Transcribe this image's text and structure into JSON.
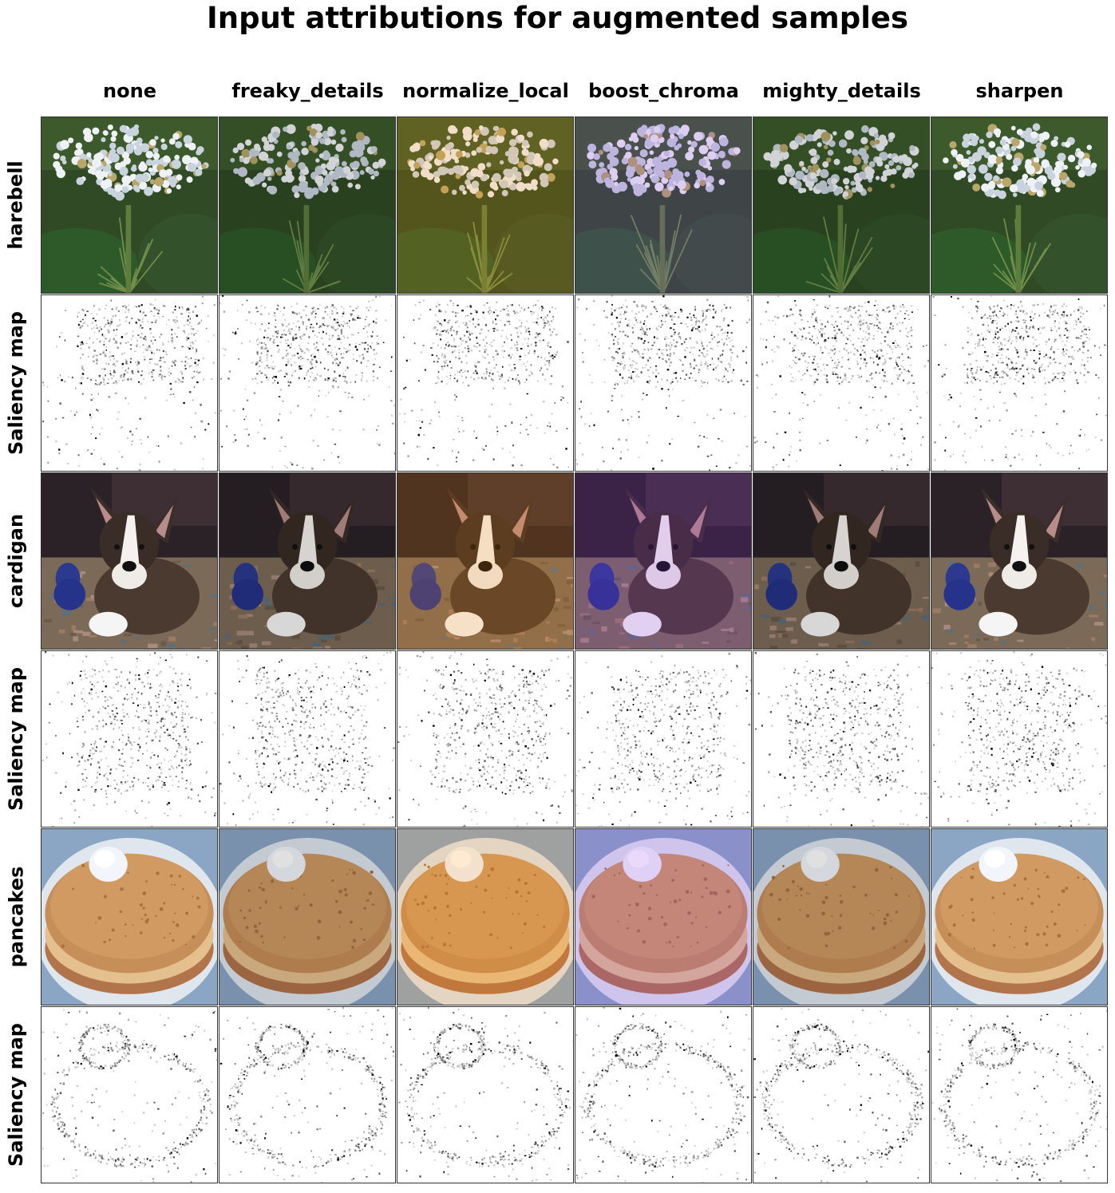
{
  "title": "Input attributions for augmented samples",
  "columns": [
    "none",
    "freaky_details",
    "normalize_local",
    "boost_chroma",
    "mighty_details",
    "sharpen"
  ],
  "rows": [
    {
      "label": "harebell",
      "kind": "image",
      "subject": "flower"
    },
    {
      "label": "Saliency map",
      "kind": "saliency",
      "subject": "flower"
    },
    {
      "label": "cardigan",
      "kind": "image",
      "subject": "dog"
    },
    {
      "label": "Saliency map",
      "kind": "saliency",
      "subject": "dog"
    },
    {
      "label": "pancakes",
      "kind": "image",
      "subject": "pancakes"
    },
    {
      "label": "Saliency map",
      "kind": "saliency",
      "subject": "pancakes"
    }
  ],
  "augment_tints": {
    "none": "none",
    "freaky_details": "#000000",
    "normalize_local": "#ff8a00",
    "boost_chroma": "#8a2be2",
    "mighty_details": "#000000",
    "sharpen": "none"
  }
}
